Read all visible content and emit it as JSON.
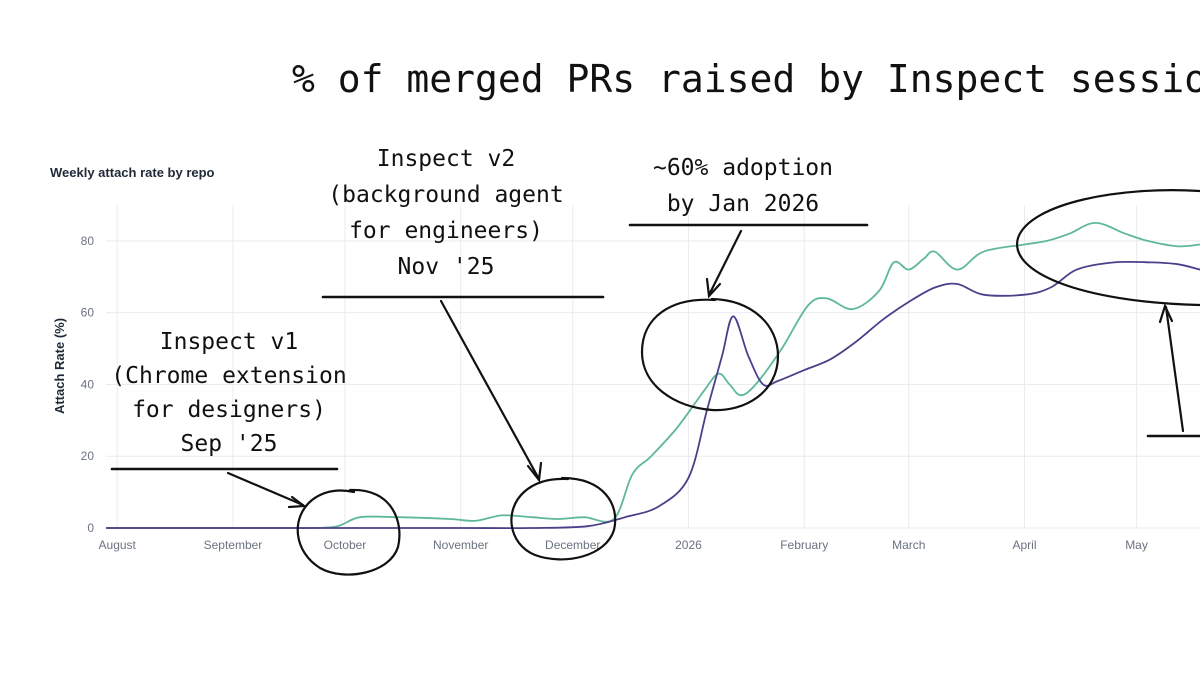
{
  "title": "% of merged PRs raised by Inspect sessions",
  "chart_data": {
    "type": "line",
    "subtitle": "Weekly attach rate by repo",
    "xlabel": "",
    "ylabel": "Attach Rate (%)",
    "ylim": [
      0,
      90
    ],
    "yticks": [
      0,
      20,
      40,
      60,
      80
    ],
    "xlim": [
      "2025-07-29",
      "2026-05-18"
    ],
    "xticks": [
      {
        "date": "2025-08-01",
        "label": "August"
      },
      {
        "date": "2025-09-01",
        "label": "September"
      },
      {
        "date": "2025-10-01",
        "label": "October"
      },
      {
        "date": "2025-11-01",
        "label": "November"
      },
      {
        "date": "2025-12-01",
        "label": "December"
      },
      {
        "date": "2026-01-01",
        "label": "2026"
      },
      {
        "date": "2026-02-01",
        "label": "February"
      },
      {
        "date": "2026-03-01",
        "label": "March"
      },
      {
        "date": "2026-04-01",
        "label": "April"
      },
      {
        "date": "2026-05-01",
        "label": "May"
      }
    ],
    "grid": true,
    "colors": {
      "teal": "#5fb89a",
      "purple": "#4b3f8c",
      "grid": "#e9ebef",
      "tick": "#6b7280"
    },
    "series": [
      {
        "color": "#5fb89a",
        "points": [
          [
            "2025-07-29",
            0
          ],
          [
            "2025-08-15",
            0
          ],
          [
            "2025-09-01",
            0
          ],
          [
            "2025-09-15",
            0
          ],
          [
            "2025-09-22",
            0
          ],
          [
            "2025-09-29",
            0.5
          ],
          [
            "2025-10-05",
            3
          ],
          [
            "2025-10-15",
            3
          ],
          [
            "2025-10-29",
            2.5
          ],
          [
            "2025-11-05",
            2
          ],
          [
            "2025-11-12",
            3.5
          ],
          [
            "2025-11-20",
            3
          ],
          [
            "2025-11-27",
            2.5
          ],
          [
            "2025-12-04",
            3
          ],
          [
            "2025-12-12",
            2.5
          ],
          [
            "2025-12-17",
            15
          ],
          [
            "2025-12-22",
            20
          ],
          [
            "2025-12-29",
            28
          ],
          [
            "2026-01-05",
            38
          ],
          [
            "2026-01-09",
            43
          ],
          [
            "2026-01-12",
            40
          ],
          [
            "2026-01-15",
            37
          ],
          [
            "2026-01-19",
            40
          ],
          [
            "2026-01-26",
            50
          ],
          [
            "2026-02-02",
            62
          ],
          [
            "2026-02-07",
            64
          ],
          [
            "2026-02-14",
            61
          ],
          [
            "2026-02-21",
            66
          ],
          [
            "2026-02-25",
            74
          ],
          [
            "2026-03-01",
            72
          ],
          [
            "2026-03-05",
            75
          ],
          [
            "2026-03-08",
            77
          ],
          [
            "2026-03-14",
            72
          ],
          [
            "2026-03-21",
            77
          ],
          [
            "2026-04-01",
            79
          ],
          [
            "2026-04-07",
            80
          ],
          [
            "2026-04-13",
            82
          ],
          [
            "2026-04-20",
            85
          ],
          [
            "2026-04-28",
            82
          ],
          [
            "2026-05-04",
            80
          ],
          [
            "2026-05-12",
            78.5
          ],
          [
            "2026-05-18",
            79
          ]
        ]
      },
      {
        "color": "#4b3f8c",
        "points": [
          [
            "2025-07-29",
            0
          ],
          [
            "2025-09-01",
            0
          ],
          [
            "2025-10-01",
            0
          ],
          [
            "2025-11-01",
            0
          ],
          [
            "2025-11-20",
            0
          ],
          [
            "2025-12-05",
            0.5
          ],
          [
            "2025-12-15",
            3
          ],
          [
            "2025-12-24",
            6
          ],
          [
            "2026-01-01",
            14
          ],
          [
            "2026-01-06",
            33
          ],
          [
            "2026-01-10",
            48
          ],
          [
            "2026-01-13",
            59
          ],
          [
            "2026-01-17",
            48
          ],
          [
            "2026-01-21",
            40
          ],
          [
            "2026-01-25",
            41
          ],
          [
            "2026-02-01",
            44
          ],
          [
            "2026-02-08",
            47
          ],
          [
            "2026-02-15",
            52
          ],
          [
            "2026-02-22",
            58
          ],
          [
            "2026-03-01",
            63
          ],
          [
            "2026-03-08",
            67
          ],
          [
            "2026-03-14",
            68
          ],
          [
            "2026-03-21",
            65
          ],
          [
            "2026-04-01",
            65
          ],
          [
            "2026-04-08",
            67
          ],
          [
            "2026-04-15",
            72
          ],
          [
            "2026-04-25",
            74
          ],
          [
            "2026-05-05",
            74
          ],
          [
            "2026-05-12",
            73.5
          ],
          [
            "2026-05-18",
            72
          ]
        ]
      }
    ],
    "annotations": [
      {
        "lines": [
          "Inspect v1",
          "(Chrome extension",
          "for designers)",
          "Sep '25"
        ]
      },
      {
        "lines": [
          "Inspect v2",
          "(background agent",
          "for engineers)",
          "Nov '25"
        ]
      },
      {
        "lines": [
          "~60% adoption",
          "by Jan 2026"
        ]
      }
    ]
  }
}
